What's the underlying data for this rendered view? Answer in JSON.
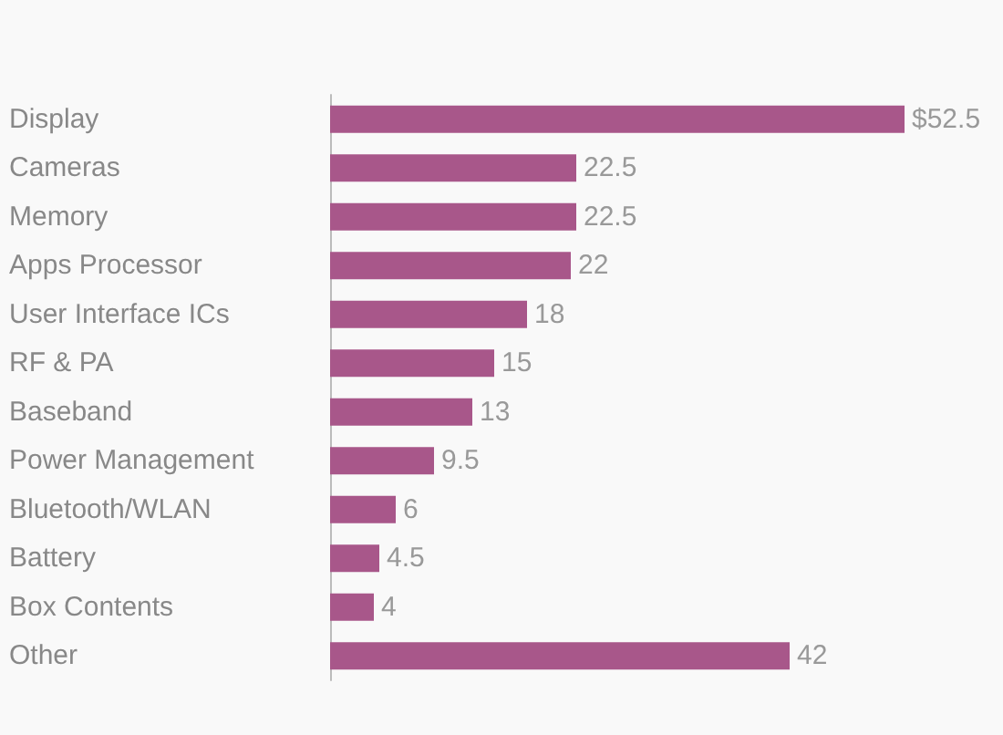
{
  "chart_data": {
    "type": "bar",
    "orientation": "horizontal",
    "categories": [
      "Display",
      "Cameras",
      "Memory",
      "Apps Processor",
      "User Interface ICs",
      "RF & PA",
      "Baseband",
      "Power Management",
      "Bluetooth/WLAN",
      "Battery",
      "Box Contents",
      "Other"
    ],
    "values": [
      52.5,
      22.5,
      22.5,
      22,
      18,
      15,
      13,
      9.5,
      6,
      4.5,
      4,
      42
    ],
    "value_labels": [
      "$52.5",
      "22.5",
      "22.5",
      "22",
      "18",
      "15",
      "13",
      "9.5",
      "6",
      "4.5",
      "4",
      "42"
    ],
    "color": "#a8578a"
  }
}
